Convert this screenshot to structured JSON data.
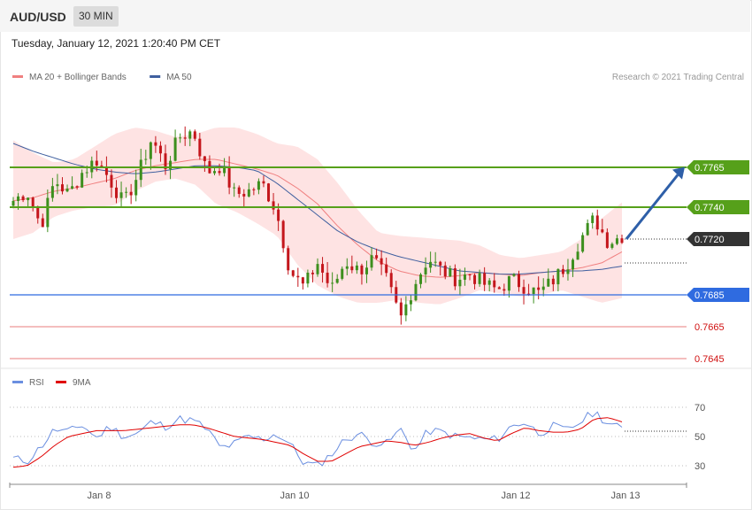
{
  "header": {
    "symbol": "AUD/USD",
    "timeframe": "30 MIN"
  },
  "timestamp": "Tuesday, January 12, 2021 1:20:40 PM CET",
  "colors": {
    "bull": "#3d8f1e",
    "bear": "#c4161c",
    "ma20": "#f08080",
    "ma50": "#3f5f9f",
    "band": "#fddada",
    "resistance": "#56a01a",
    "support": "#2f6be0",
    "target": "#e05050",
    "current": "#333333",
    "arrow": "#2e5fa8",
    "rsi": "#6b8fe0",
    "rsi_ma": "#e00000"
  },
  "chart_data": [
    {
      "type": "candlestick",
      "legend": [
        {
          "label": "MA 20 + Bollinger Bands",
          "color": "#f08080"
        },
        {
          "label": "MA 50",
          "color": "#3f5f9f"
        }
      ],
      "legend_placement": "top-left",
      "credit": "Research © 2021 Trading Central",
      "ylim": [
        0.7626,
        0.7811
      ],
      "x_ticks": [
        "Jan 8",
        "Jan 10",
        "Jan 12",
        "Jan 13"
      ],
      "current_price": "0.7720",
      "levels": [
        {
          "value": "0.7765",
          "kind": "resistance"
        },
        {
          "value": "0.7740",
          "kind": "resistance"
        },
        {
          "value": "0.7685",
          "kind": "support"
        },
        {
          "value": "0.7665",
          "kind": "target"
        },
        {
          "value": "0.7645",
          "kind": "target"
        }
      ],
      "forecast_arrow": {
        "from": 0.772,
        "to": 0.7763,
        "direction": "up"
      },
      "candle_anchors": [
        0.7744,
        0.775,
        0.7728,
        0.7757,
        0.7748,
        0.7762,
        0.777,
        0.7757,
        0.7742,
        0.776,
        0.7783,
        0.7766,
        0.7784,
        0.7788,
        0.7762,
        0.7766,
        0.7748,
        0.775,
        0.7755,
        0.7738,
        0.77,
        0.769,
        0.7705,
        0.7688,
        0.7706,
        0.77,
        0.7708,
        0.7694,
        0.767,
        0.7692,
        0.7708,
        0.77,
        0.7695,
        0.7698,
        0.7692,
        0.7688,
        0.7695,
        0.769,
        0.7686,
        0.7694,
        0.7704,
        0.772,
        0.7733,
        0.7718,
        0.7722
      ],
      "ma20_anchors": [
        0.7744,
        0.7746,
        0.775,
        0.7752,
        0.7755,
        0.7758,
        0.7763,
        0.7766,
        0.7768,
        0.777,
        0.777,
        0.7767,
        0.7764,
        0.776,
        0.7752,
        0.7742,
        0.7728,
        0.7716,
        0.7706,
        0.77,
        0.7697,
        0.7696,
        0.7697,
        0.7699,
        0.7698,
        0.7697,
        0.7699,
        0.77,
        0.7702,
        0.7705,
        0.7712
      ],
      "ma50_anchors": [
        0.778,
        0.7775,
        0.7771,
        0.7767,
        0.7764,
        0.7762,
        0.7761,
        0.7762,
        0.7764,
        0.7766,
        0.7766,
        0.7765,
        0.7763,
        0.7755,
        0.7745,
        0.7735,
        0.7725,
        0.7718,
        0.7713,
        0.7709,
        0.7706,
        0.7703,
        0.77,
        0.7699,
        0.7698,
        0.7698,
        0.7699,
        0.77,
        0.77,
        0.7701,
        0.7703
      ],
      "band_upper_anchors": [
        0.7782,
        0.7774,
        0.7768,
        0.777,
        0.7778,
        0.7786,
        0.779,
        0.7788,
        0.7784,
        0.7786,
        0.779,
        0.779,
        0.7786,
        0.778,
        0.7778,
        0.777,
        0.7755,
        0.7738,
        0.7724,
        0.7722,
        0.7721,
        0.772,
        0.7719,
        0.7716,
        0.771,
        0.7708,
        0.771,
        0.7712,
        0.772,
        0.7733,
        0.7743
      ],
      "band_lower_anchors": [
        0.772,
        0.7724,
        0.7734,
        0.7738,
        0.774,
        0.7741,
        0.775,
        0.7756,
        0.7758,
        0.7754,
        0.7742,
        0.7737,
        0.773,
        0.7722,
        0.7704,
        0.7691,
        0.7684,
        0.768,
        0.768,
        0.7682,
        0.768,
        0.7679,
        0.7683,
        0.7688,
        0.7686,
        0.7684,
        0.7685,
        0.7688,
        0.7684,
        0.768,
        0.7683
      ]
    },
    {
      "type": "line",
      "legend": [
        {
          "label": "RSI",
          "color": "#6b8fe0"
        },
        {
          "label": "9MA",
          "color": "#e00000"
        }
      ],
      "legend_placement": "top-left",
      "ylim": [
        20,
        80
      ],
      "y_ticks": [
        "70",
        "50",
        "30"
      ],
      "series": [
        {
          "name": "RSI",
          "values": [
            35,
            33,
            43,
            55,
            53,
            58,
            49,
            57,
            50,
            52,
            60,
            57,
            62,
            61,
            55,
            42,
            45,
            50,
            48,
            52,
            45,
            32,
            30,
            38,
            48,
            52,
            46,
            45,
            55,
            40,
            54,
            53,
            50,
            49,
            48,
            48,
            57,
            60,
            52,
            57,
            54,
            60,
            67,
            59,
            55
          ]
        },
        {
          "name": "9MA",
          "values": [
            29,
            30,
            36,
            44,
            50,
            52,
            54,
            54,
            54,
            55,
            56,
            57,
            58,
            58,
            56,
            53,
            50,
            49,
            48,
            46,
            44,
            38,
            33,
            33,
            38,
            43,
            45,
            47,
            46,
            44,
            46,
            49,
            51,
            52,
            49,
            47,
            52,
            56,
            54,
            53,
            53,
            55,
            62,
            63,
            60
          ]
        }
      ]
    }
  ]
}
